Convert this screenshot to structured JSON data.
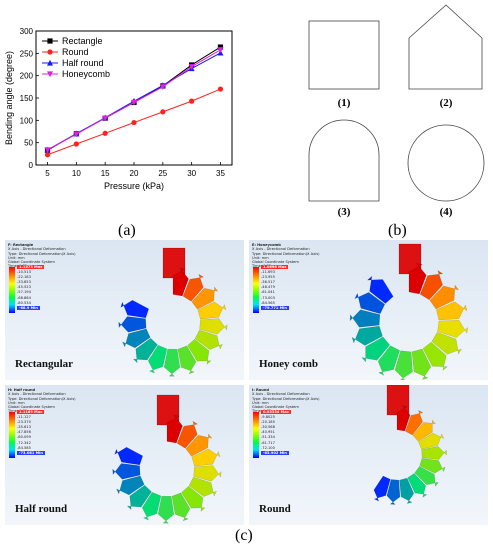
{
  "panel_labels": {
    "a": "(a)",
    "b": "(b)",
    "c": "(c)"
  },
  "chart_data": {
    "type": "line",
    "xlabel": "Pressure (kPa)",
    "ylabel": "Bending angle (degree)",
    "x": [
      5,
      10,
      15,
      20,
      25,
      30,
      35
    ],
    "xlim": [
      3,
      37
    ],
    "ylim": [
      0,
      300
    ],
    "xticks": [
      5,
      10,
      15,
      20,
      25,
      30,
      35
    ],
    "yticks": [
      0,
      50,
      100,
      150,
      200,
      250,
      300
    ],
    "legend_position": "top-left",
    "grid": false,
    "series": [
      {
        "name": "Rectangle",
        "color": "#000000",
        "marker": "square",
        "values": [
          33,
          70,
          105,
          140,
          177,
          224,
          264
        ]
      },
      {
        "name": "Round",
        "color": "#ff2020",
        "marker": "circle",
        "values": [
          23,
          47,
          71,
          95,
          119,
          143,
          170
        ]
      },
      {
        "name": "Half round",
        "color": "#1a1aff",
        "marker": "triangle",
        "values": [
          34,
          70,
          106,
          143,
          178,
          216,
          251
        ]
      },
      {
        "name": "Honeycomb",
        "color": "#e020e0",
        "marker": "triangle-down",
        "values": [
          34,
          69,
          105,
          140,
          175,
          220,
          258
        ]
      }
    ]
  },
  "cross_sections": [
    {
      "label": "(1)",
      "shape": "rectangle"
    },
    {
      "label": "(2)",
      "shape": "pentagon"
    },
    {
      "label": "(3)",
      "shape": "half-round"
    },
    {
      "label": "(4)",
      "shape": "circle"
    }
  ],
  "simulations": [
    {
      "name": "Rectangular",
      "info": [
        "F: Rectangle",
        "X Axis - Directional Deformation",
        "Type: Directional Deformation(X Axis)",
        "Unit: mm",
        "Global Coordinate System",
        "Time: 0.85"
      ],
      "max": "1.1573 Max",
      "levels": [
        "-10.513",
        "-22.183",
        "-33.853",
        "-45.523",
        "-57.194",
        "-68.864",
        "-80.534"
      ],
      "min": "-68.9 Min"
    },
    {
      "name": "Honey comb",
      "info": [
        "E: Honeycomb",
        "X Axis - Directional Deformation",
        "Type: Directional Deformation(X Axis)",
        "Unit: mm",
        "Global Coordinate System",
        "Time: 0.85"
      ],
      "max": "1.0696 Max",
      "levels": [
        "-11.693",
        "-23.955",
        "-36.517",
        "-48.479",
        "-61.041",
        "-73.003",
        "-84.565"
      ],
      "min": "-79.771 Min"
    },
    {
      "name": "Half round",
      "info": [
        "H: Half round",
        "X Axis - Directional Deformation",
        "Type: Directional Deformation(X Axis)",
        "Unit: mm",
        "Global Coordinate System",
        "Time: 0.85"
      ],
      "max": "1.1169 Max",
      "levels": [
        "-11.127",
        "-23.370",
        "-35.613",
        "-47.856",
        "-60.099",
        "-72.342",
        "-84.585"
      ],
      "min": "-73.081 Min"
    },
    {
      "name": "Round",
      "info": [
        "I: Round",
        "X Axis - Directional Deformation",
        "Type: Directional Deformation(X Axis)",
        "Unit: mm",
        "Global Coordinate System",
        "Time: 0.85"
      ],
      "max": "0.83334 Max",
      "levels": [
        "-9.8025",
        "-20.185",
        "-30.568",
        "-40.951",
        "-51.334",
        "-61.717",
        "-72.100"
      ],
      "min": "-65.902 Min"
    }
  ]
}
